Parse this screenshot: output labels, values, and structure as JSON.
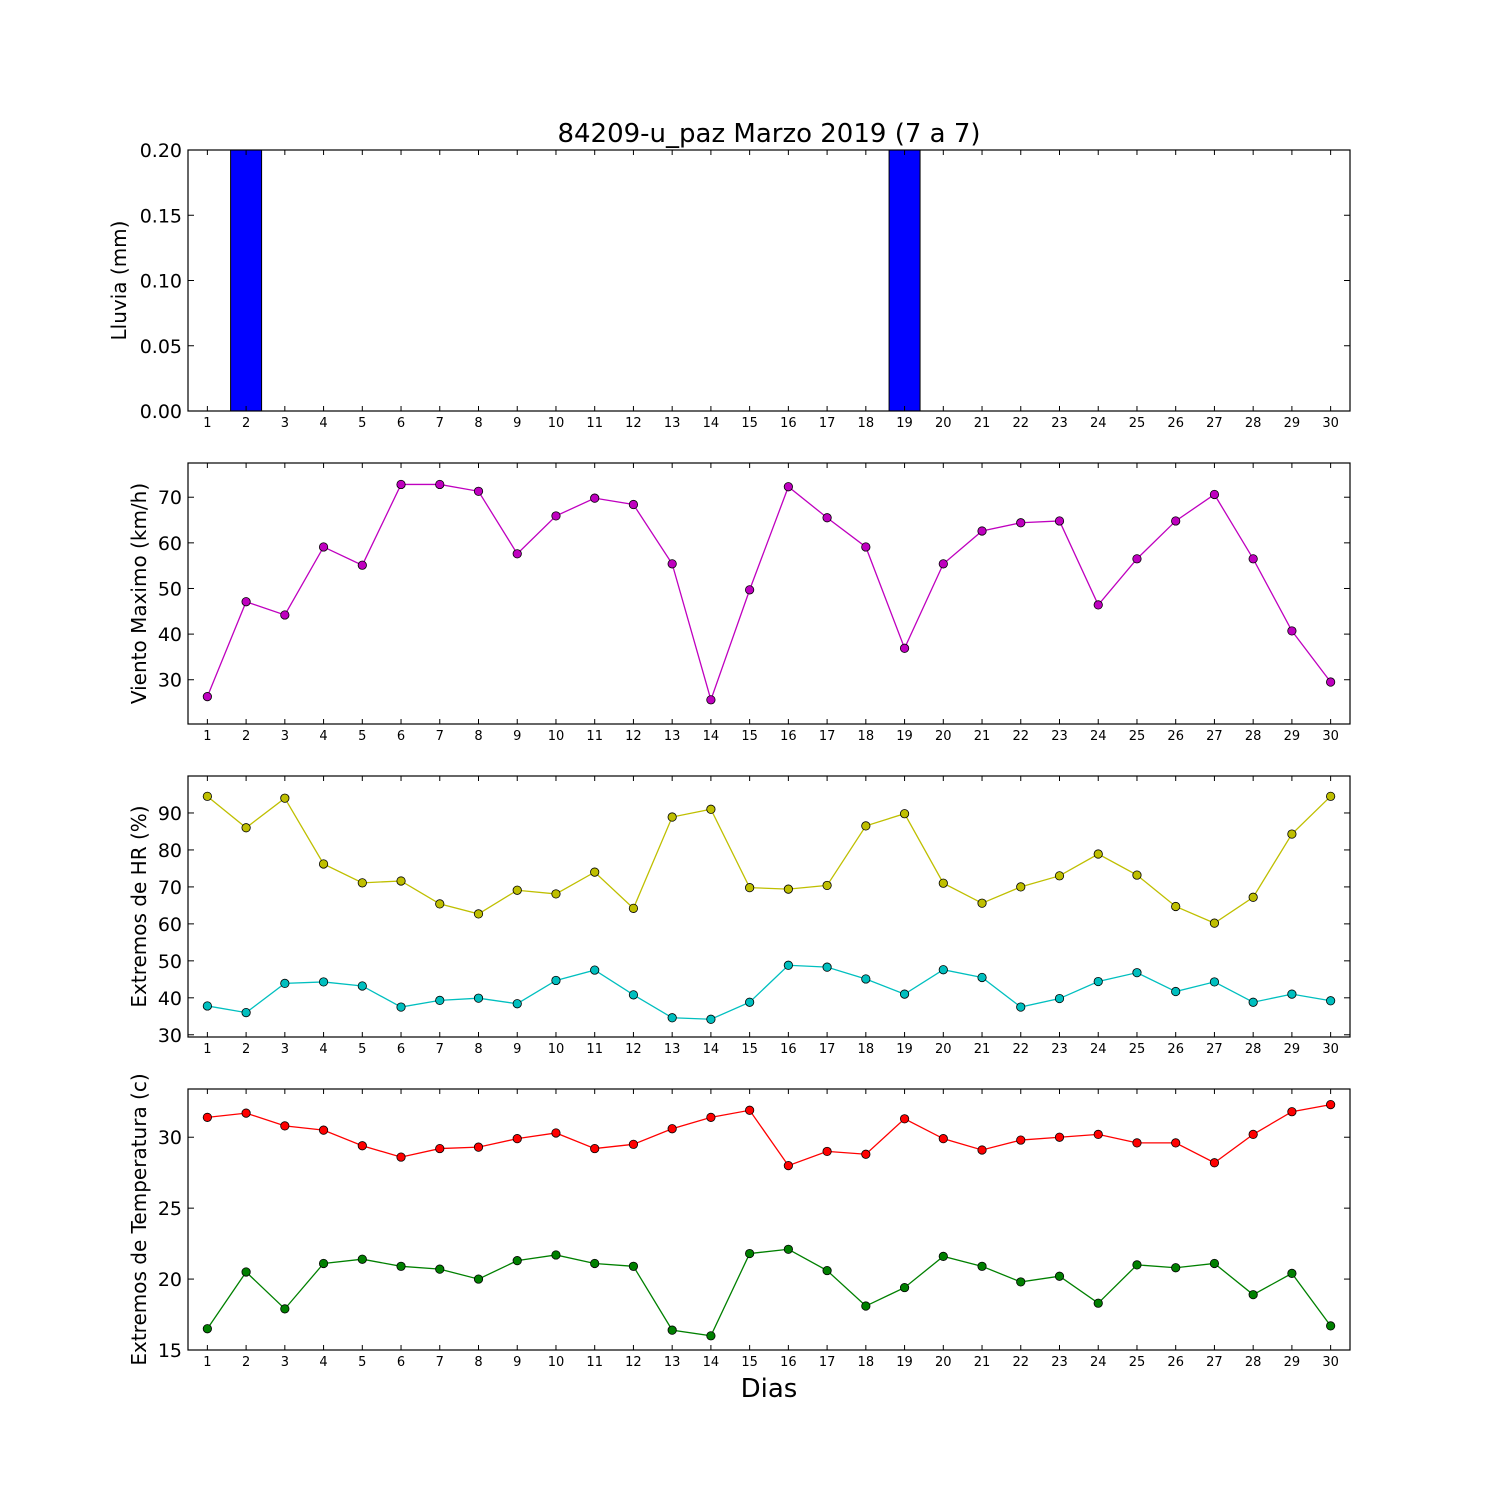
{
  "chart_data": {
    "title": "84209-u_paz Marzo 2019  (7 a 7)",
    "xlabel": "Dias",
    "days": [
      1,
      2,
      3,
      4,
      5,
      6,
      7,
      8,
      9,
      10,
      11,
      12,
      13,
      14,
      15,
      16,
      17,
      18,
      19,
      20,
      21,
      22,
      23,
      24,
      25,
      26,
      27,
      28,
      29,
      30
    ],
    "panels": [
      {
        "type": "bar",
        "ylabel": "Lluvia (mm)",
        "ylim": [
          0,
          0.2
        ],
        "yticks": [
          "0.00",
          "0.05",
          "0.10",
          "0.15",
          "0.20"
        ],
        "series": [
          {
            "color": "#0000ff",
            "values": [
              0,
              0.2,
              0,
              0,
              0,
              0,
              0,
              0,
              0,
              0,
              0,
              0,
              0,
              0,
              0,
              0,
              0,
              0,
              0.2,
              0,
              0,
              0,
              0,
              0,
              0,
              0,
              0,
              0,
              0,
              0
            ]
          }
        ]
      },
      {
        "type": "line",
        "ylabel": "Viento Maximo (km/h)",
        "ylim": [
          20.3,
          77.5
        ],
        "yticks": [
          "30",
          "40",
          "50",
          "60",
          "70"
        ],
        "series": [
          {
            "color": "#bf00bf",
            "values": [
              26.3,
              47.1,
              44.2,
              59.1,
              55.1,
              72.8,
              72.8,
              71.3,
              57.6,
              65.9,
              69.8,
              68.4,
              55.4,
              25.6,
              49.7,
              72.3,
              65.5,
              59.1,
              36.9,
              55.4,
              62.6,
              64.4,
              64.8,
              46.4,
              56.5,
              64.8,
              70.6,
              56.5,
              40.7,
              29.5
            ]
          }
        ]
      },
      {
        "type": "line",
        "ylabel": "Extremos de HR (%)",
        "ylim": [
          29.4,
          100
        ],
        "yticks": [
          "30",
          "40",
          "50",
          "60",
          "70",
          "80",
          "90"
        ],
        "series": [
          {
            "color": "#bfbf00",
            "values": [
              94.5,
              86.0,
              94.0,
              76.2,
              71.1,
              71.6,
              65.4,
              62.7,
              69.1,
              68.1,
              74.0,
              64.2,
              88.9,
              91.0,
              69.8,
              69.4,
              70.4,
              86.5,
              89.8,
              71.0,
              65.6,
              70.0,
              73.0,
              78.9,
              73.2,
              64.7,
              60.2,
              67.2,
              84.3,
              94.5
            ]
          },
          {
            "color": "#00bfbf",
            "values": [
              37.8,
              36.0,
              43.9,
              44.3,
              43.2,
              37.5,
              39.3,
              39.9,
              38.4,
              44.7,
              47.5,
              40.8,
              34.6,
              34.2,
              38.8,
              48.8,
              48.3,
              45.1,
              41.0,
              47.6,
              45.5,
              37.5,
              39.8,
              44.4,
              46.8,
              41.7,
              44.3,
              38.8,
              41.0,
              39.2
            ]
          }
        ]
      },
      {
        "type": "line",
        "ylabel": "Extremos de Temperatura (c)",
        "ylim": [
          15,
          33.4
        ],
        "yticks": [
          "15",
          "20",
          "25",
          "30"
        ],
        "series": [
          {
            "color": "#ff0000",
            "values": [
              31.4,
              31.7,
              30.8,
              30.5,
              29.4,
              28.6,
              29.2,
              29.3,
              29.9,
              30.3,
              29.2,
              29.5,
              30.6,
              31.4,
              31.9,
              28.0,
              29.0,
              28.8,
              31.3,
              29.9,
              29.1,
              29.8,
              30.0,
              30.2,
              29.6,
              29.6,
              28.2,
              30.2,
              31.8,
              32.3
            ]
          },
          {
            "color": "#008000",
            "values": [
              16.5,
              20.5,
              17.9,
              21.1,
              21.4,
              20.9,
              20.7,
              20.0,
              21.3,
              21.7,
              21.1,
              20.9,
              16.4,
              16.0,
              21.8,
              22.1,
              20.6,
              18.1,
              19.4,
              21.6,
              20.9,
              19.8,
              20.2,
              18.3,
              21.0,
              20.8,
              21.1,
              18.9,
              20.4,
              16.7
            ]
          }
        ]
      }
    ]
  }
}
